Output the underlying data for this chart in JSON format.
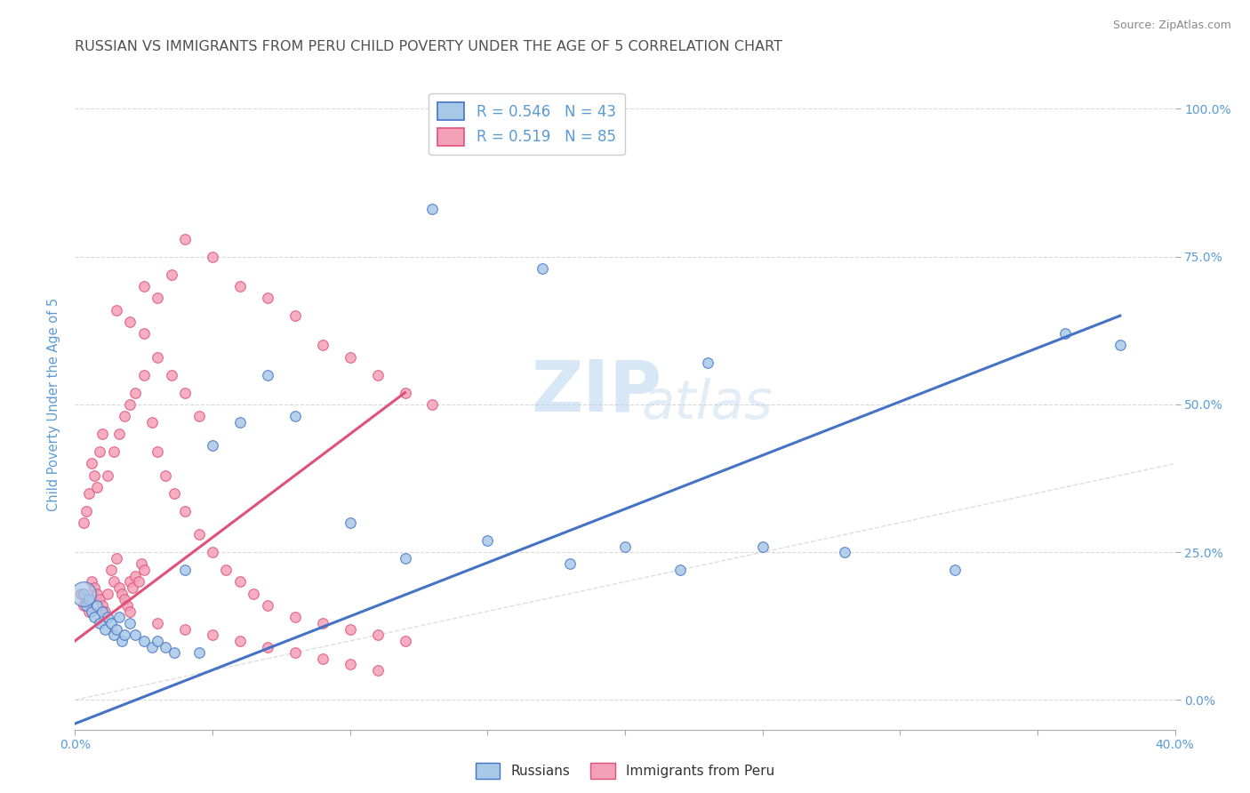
{
  "title": "RUSSIAN VS IMMIGRANTS FROM PERU CHILD POVERTY UNDER THE AGE OF 5 CORRELATION CHART",
  "source": "Source: ZipAtlas.com",
  "ylabel": "Child Poverty Under the Age of 5",
  "xlim": [
    0.0,
    0.4
  ],
  "ylim": [
    -0.05,
    1.05
  ],
  "xtick_labels": [
    "0.0%",
    "",
    "",
    "",
    "",
    "",
    "",
    "",
    "40.0%"
  ],
  "xtick_vals": [
    0.0,
    0.05,
    0.1,
    0.15,
    0.2,
    0.25,
    0.3,
    0.35,
    0.4
  ],
  "ytick_labels": [
    "0.0%",
    "25.0%",
    "50.0%",
    "75.0%",
    "100.0%"
  ],
  "ytick_vals": [
    0.0,
    0.25,
    0.5,
    0.75,
    1.0
  ],
  "legend_r1": "R = 0.546",
  "legend_n1": "N = 43",
  "legend_r2": "R = 0.519",
  "legend_n2": "N = 85",
  "color_russian": "#a8c8e8",
  "color_peru": "#f4a0b8",
  "color_line_russian": "#4472c4",
  "color_line_peru": "#e0507a",
  "color_diagonal": "#c8c8c8",
  "title_color": "#505050",
  "axis_label_color": "#5b9bd5",
  "tick_color": "#5b9bd5",
  "watermark_zip": "ZIP",
  "watermark_atlas": "atlas",
  "russians_x": [
    0.003,
    0.004,
    0.005,
    0.006,
    0.007,
    0.008,
    0.009,
    0.01,
    0.011,
    0.012,
    0.013,
    0.014,
    0.015,
    0.016,
    0.017,
    0.018,
    0.02,
    0.022,
    0.025,
    0.028,
    0.03,
    0.033,
    0.036,
    0.04,
    0.045,
    0.05,
    0.06,
    0.07,
    0.08,
    0.1,
    0.12,
    0.15,
    0.18,
    0.2,
    0.22,
    0.25,
    0.28,
    0.32,
    0.36,
    0.38,
    0.13,
    0.17,
    0.23
  ],
  "russians_y": [
    0.18,
    0.16,
    0.17,
    0.15,
    0.14,
    0.16,
    0.13,
    0.15,
    0.12,
    0.14,
    0.13,
    0.11,
    0.12,
    0.14,
    0.1,
    0.11,
    0.13,
    0.11,
    0.1,
    0.09,
    0.1,
    0.09,
    0.08,
    0.22,
    0.08,
    0.43,
    0.47,
    0.55,
    0.48,
    0.3,
    0.24,
    0.27,
    0.23,
    0.26,
    0.22,
    0.26,
    0.25,
    0.22,
    0.62,
    0.6,
    0.83,
    0.73,
    0.57
  ],
  "russians_size": [
    200,
    80,
    80,
    80,
    80,
    80,
    80,
    80,
    80,
    80,
    80,
    80,
    80,
    80,
    80,
    80,
    80,
    80,
    80,
    80,
    80,
    80,
    80,
    80,
    80,
    80,
    80,
    80,
    80,
    80,
    80,
    80,
    80,
    80,
    80,
    80,
    80,
    80,
    80,
    80,
    80,
    80,
    80
  ],
  "peru_x": [
    0.002,
    0.003,
    0.004,
    0.005,
    0.006,
    0.007,
    0.008,
    0.009,
    0.01,
    0.011,
    0.012,
    0.013,
    0.014,
    0.015,
    0.016,
    0.017,
    0.018,
    0.019,
    0.02,
    0.021,
    0.022,
    0.023,
    0.024,
    0.025,
    0.003,
    0.004,
    0.005,
    0.006,
    0.007,
    0.008,
    0.009,
    0.01,
    0.012,
    0.014,
    0.016,
    0.018,
    0.02,
    0.022,
    0.025,
    0.028,
    0.03,
    0.033,
    0.036,
    0.04,
    0.045,
    0.05,
    0.055,
    0.06,
    0.065,
    0.07,
    0.08,
    0.09,
    0.1,
    0.11,
    0.12,
    0.025,
    0.03,
    0.035,
    0.04,
    0.045,
    0.015,
    0.02,
    0.025,
    0.03,
    0.035,
    0.04,
    0.05,
    0.06,
    0.07,
    0.08,
    0.09,
    0.1,
    0.11,
    0.12,
    0.13,
    0.02,
    0.03,
    0.04,
    0.05,
    0.06,
    0.07,
    0.08,
    0.09,
    0.1,
    0.11
  ],
  "peru_y": [
    0.18,
    0.16,
    0.17,
    0.15,
    0.2,
    0.19,
    0.18,
    0.17,
    0.16,
    0.15,
    0.18,
    0.22,
    0.2,
    0.24,
    0.19,
    0.18,
    0.17,
    0.16,
    0.2,
    0.19,
    0.21,
    0.2,
    0.23,
    0.22,
    0.3,
    0.32,
    0.35,
    0.4,
    0.38,
    0.36,
    0.42,
    0.45,
    0.38,
    0.42,
    0.45,
    0.48,
    0.5,
    0.52,
    0.55,
    0.47,
    0.42,
    0.38,
    0.35,
    0.32,
    0.28,
    0.25,
    0.22,
    0.2,
    0.18,
    0.16,
    0.14,
    0.13,
    0.12,
    0.11,
    0.1,
    0.62,
    0.58,
    0.55,
    0.52,
    0.48,
    0.66,
    0.64,
    0.7,
    0.68,
    0.72,
    0.78,
    0.75,
    0.7,
    0.68,
    0.65,
    0.6,
    0.58,
    0.55,
    0.52,
    0.5,
    0.15,
    0.13,
    0.12,
    0.11,
    0.1,
    0.09,
    0.08,
    0.07,
    0.06,
    0.05
  ],
  "peru_size": [
    80,
    80,
    80,
    80,
    80,
    80,
    80,
    80,
    80,
    80,
    80,
    80,
    80,
    80,
    80,
    80,
    80,
    80,
    80,
    80,
    80,
    80,
    80,
    80,
    80,
    80,
    80,
    80,
    80,
    80,
    80,
    80,
    80,
    80,
    80,
    80,
    80,
    80,
    80,
    80,
    80,
    80,
    80,
    80,
    80,
    80,
    80,
    80,
    80,
    80,
    80,
    80,
    80,
    80,
    80,
    80,
    80,
    80,
    80,
    80,
    80,
    80,
    80,
    80,
    80,
    80,
    80,
    80,
    80,
    80,
    80,
    80,
    80,
    80,
    80,
    80,
    80,
    80,
    80,
    80,
    80,
    80,
    80,
    80,
    80
  ]
}
